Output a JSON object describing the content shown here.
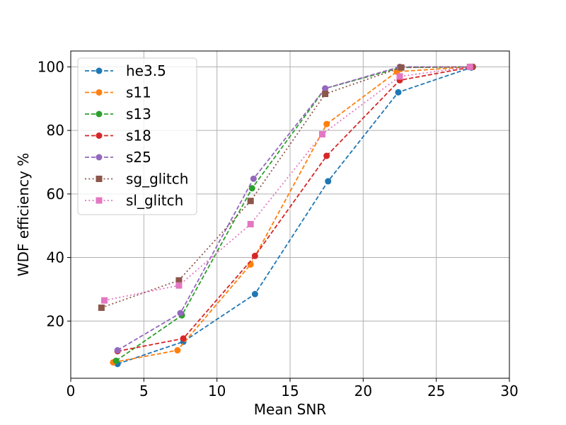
{
  "chart_data": {
    "type": "line",
    "title": "",
    "xlabel": "Mean SNR",
    "ylabel": "WDF efficiency %",
    "xlim": [
      0,
      30
    ],
    "ylim": [
      2,
      105
    ],
    "xticks": [
      0,
      5,
      10,
      15,
      20,
      25,
      30
    ],
    "yticks": [
      20,
      40,
      60,
      80,
      100
    ],
    "grid": true,
    "legend": "top-left",
    "series": [
      {
        "name": "he3.5",
        "color": "#1f77b4",
        "linestyle": "dashed",
        "marker": "circle",
        "x": [
          3.2,
          7.7,
          12.6,
          17.6,
          22.4,
          27.4
        ],
        "y": [
          6.5,
          13.5,
          28.5,
          64,
          92,
          99.8
        ]
      },
      {
        "name": "s11",
        "color": "#ff7f0e",
        "linestyle": "dashed",
        "marker": "circle",
        "x": [
          2.9,
          7.3,
          12.3,
          17.5,
          22.3,
          27.3
        ],
        "y": [
          7.0,
          10.8,
          37.8,
          82,
          98.5,
          100
        ]
      },
      {
        "name": "s13",
        "color": "#2ca02c",
        "linestyle": "dashed",
        "marker": "circle",
        "x": [
          3.1,
          7.6,
          12.4,
          17.4,
          22.6,
          27.5
        ],
        "y": [
          7.5,
          21.8,
          61.8,
          93.2,
          99.8,
          100
        ]
      },
      {
        "name": "s18",
        "color": "#d62728",
        "linestyle": "dashed",
        "marker": "circle",
        "x": [
          3.2,
          7.7,
          12.6,
          17.5,
          22.5,
          27.5
        ],
        "y": [
          10.5,
          14.5,
          40.5,
          72,
          95.8,
          100
        ]
      },
      {
        "name": "s25",
        "color": "#9467bd",
        "linestyle": "dashed",
        "marker": "circle",
        "x": [
          3.2,
          7.5,
          12.5,
          17.4,
          22.5,
          27.4
        ],
        "y": [
          10.8,
          22.5,
          64.8,
          93.2,
          100,
          100
        ]
      },
      {
        "name": "sg_glitch",
        "color": "#8c564b",
        "linestyle": "dotted",
        "marker": "square",
        "x": [
          2.1,
          7.4,
          12.3,
          17.4,
          22.6,
          27.4
        ],
        "y": [
          24.2,
          32.8,
          57.8,
          91.5,
          99.8,
          100
        ]
      },
      {
        "name": "sl_glitch",
        "color": "#e377c2",
        "linestyle": "dotted",
        "marker": "square",
        "x": [
          2.3,
          7.4,
          12.3,
          17.2,
          22.5,
          27.3
        ],
        "y": [
          26.5,
          31.2,
          50.5,
          78.8,
          97.0,
          100
        ]
      }
    ]
  }
}
